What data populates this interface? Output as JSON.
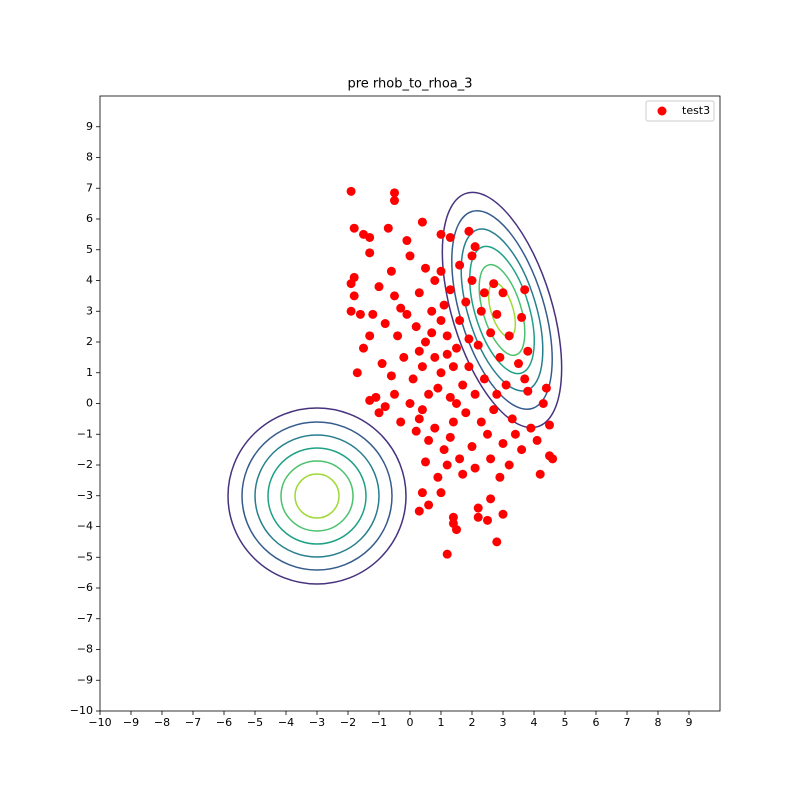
{
  "chart_data": {
    "type": "scatter",
    "title": "pre rhob_to_rhoa_3",
    "xlim": [
      -10,
      10
    ],
    "ylim": [
      -10,
      10
    ],
    "xticks": [
      {
        "value": -10,
        "label": "−10"
      },
      {
        "value": -9,
        "label": "−9"
      },
      {
        "value": -8,
        "label": "−8"
      },
      {
        "value": -7,
        "label": "−7"
      },
      {
        "value": -6,
        "label": "−6"
      },
      {
        "value": -5,
        "label": "−5"
      },
      {
        "value": -4,
        "label": "−4"
      },
      {
        "value": -3,
        "label": "−3"
      },
      {
        "value": -2,
        "label": "−2"
      },
      {
        "value": -1,
        "label": "−1"
      },
      0,
      1,
      2,
      3,
      4,
      5,
      6,
      7,
      8,
      9
    ],
    "yticks": [
      {
        "value": -10,
        "label": "−10"
      },
      {
        "value": -9,
        "label": "−9"
      },
      {
        "value": -8,
        "label": "−8"
      },
      {
        "value": -7,
        "label": "−7"
      },
      {
        "value": -6,
        "label": "−6"
      },
      {
        "value": -5,
        "label": "−5"
      },
      {
        "value": -4,
        "label": "−4"
      },
      {
        "value": -3,
        "label": "−3"
      },
      {
        "value": -2,
        "label": "−2"
      },
      {
        "value": -1,
        "label": "−1"
      },
      0,
      1,
      2,
      3,
      4,
      5,
      6,
      7,
      8,
      9
    ],
    "legend": "upper right",
    "x": [
      0.2,
      0.5,
      0.8,
      1.0,
      1.2,
      1.5,
      0.9,
      1.3,
      0.7,
      1.1,
      1.6,
      0.4,
      0.1,
      -0.2,
      -0.4,
      -0.6,
      0.0,
      0.3,
      0.8,
      1.4,
      1.8,
      2.1,
      2.4,
      1.9,
      2.2,
      2.6,
      2.9,
      3.1,
      2.7,
      3.3,
      2.5,
      2.0,
      1.6,
      1.1,
      0.6,
      0.2,
      -0.3,
      -0.5,
      -0.9,
      -0.8,
      -0.3,
      0.3,
      0.8,
      1.3,
      1.8,
      2.3,
      2.8,
      3.2,
      3.5,
      3.8,
      3.4,
      3.0,
      2.6,
      2.1,
      1.7,
      1.2,
      0.9,
      0.5,
      3.6,
      3.2,
      2.9,
      3.9,
      4.1,
      0.6,
      1.0,
      1.4,
      1.7,
      0.3,
      -0.1,
      0.5,
      1.0,
      1.6,
      -0.6,
      -1.0,
      -0.5,
      1.5,
      2.3,
      0.7,
      1.2,
      1.9,
      0.4,
      -1.0,
      2.0,
      2.4,
      2.7,
      0.0,
      -1.5,
      -0.8,
      1.3,
      2.8,
      -1.9,
      -0.5,
      -0.5,
      -1.8,
      -0.7,
      0.4,
      -1.5,
      -1.3,
      -0.1,
      1.0,
      1.3,
      1.9,
      2.1,
      2.0,
      -1.3,
      -1.8,
      -1.9,
      -1.8,
      -1.9,
      -1.6,
      -1.2,
      -1.3,
      -1.7,
      -1.1,
      -1.3,
      0.4,
      1.0,
      0.3,
      0.6,
      1.4,
      1.4,
      1.5,
      2.2,
      2.6,
      2.2,
      3.0,
      2.8,
      1.2,
      2.5,
      4.5,
      4.6,
      4.2,
      4.5,
      4.3,
      4.4,
      3.7,
      3.8,
      3.7,
      3.0,
      3.6
    ],
    "series": [
      {
        "name": "test3",
        "color": "#ff0000",
        "values": [
          2.5,
          2.0,
          1.5,
          1.0,
          2.2,
          1.8,
          0.5,
          0.2,
          3.0,
          3.2,
          2.7,
          1.2,
          0.8,
          1.5,
          2.2,
          0.9,
          0.0,
          -0.5,
          -0.8,
          -0.6,
          -0.3,
          0.3,
          0.8,
          1.2,
          1.9,
          2.3,
          1.5,
          0.6,
          -0.2,
          -0.5,
          -1.0,
          -1.4,
          -1.8,
          -1.5,
          -1.2,
          -0.9,
          -0.6,
          0.3,
          1.3,
          2.6,
          3.1,
          3.6,
          4.0,
          3.7,
          3.3,
          3.0,
          2.9,
          2.2,
          1.3,
          0.4,
          -1.0,
          -1.3,
          -1.8,
          -2.1,
          -2.3,
          -2.0,
          -2.4,
          -1.9,
          -1.5,
          -2.0,
          -2.4,
          -0.8,
          -1.2,
          0.3,
          2.7,
          1.2,
          0.6,
          1.7,
          2.9,
          4.4,
          4.3,
          4.5,
          4.3,
          3.8,
          3.5,
          0.0,
          -0.6,
          2.3,
          1.6,
          2.1,
          -0.2,
          -0.3,
          4.0,
          3.6,
          3.9,
          4.8,
          1.8,
          -0.1,
          -1.1,
          0.3,
          6.9,
          6.85,
          6.6,
          5.7,
          5.7,
          5.9,
          5.5,
          5.4,
          5.3,
          5.5,
          5.4,
          5.6,
          5.1,
          4.8,
          4.9,
          4.1,
          3.9,
          3.5,
          3.0,
          2.9,
          2.9,
          2.2,
          1.0,
          0.2,
          0.1,
          -2.9,
          -2.9,
          -3.5,
          -3.3,
          -3.7,
          -3.9,
          -4.1,
          -3.4,
          -3.1,
          -3.7,
          -3.6,
          -4.5,
          -4.9,
          -3.8,
          -1.7,
          -1.8,
          -2.3,
          -0.7,
          0.0,
          0.5,
          0.8,
          1.7,
          3.7,
          3.6,
          2.8
        ]
      }
    ]
  }
}
